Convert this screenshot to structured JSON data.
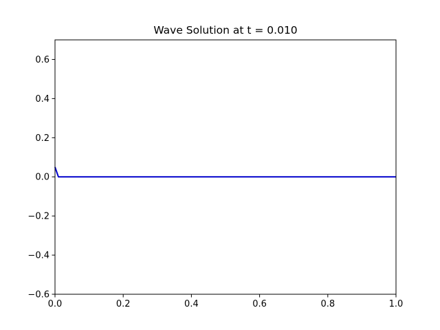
{
  "chart_data": {
    "type": "line",
    "title": "Wave Solution at t = 0.010",
    "xlabel": "",
    "ylabel": "",
    "xlim": [
      0.0,
      1.0
    ],
    "ylim": [
      -0.6,
      0.7
    ],
    "x_ticks": [
      0.0,
      0.2,
      0.4,
      0.6,
      0.8,
      1.0
    ],
    "x_tick_labels": [
      "0.0",
      "0.2",
      "0.4",
      "0.6",
      "0.8",
      "1.0"
    ],
    "y_ticks": [
      -0.6,
      -0.4,
      -0.2,
      0.0,
      0.2,
      0.4,
      0.6
    ],
    "y_tick_labels": [
      "−0.6",
      "−0.4",
      "−0.2",
      "0.0",
      "0.2",
      "0.4",
      "0.6"
    ],
    "grid": false,
    "legend": "none",
    "series": [
      {
        "color": "#0000cc",
        "x": [
          0.0,
          0.01,
          1.0
        ],
        "y": [
          0.05,
          0.0,
          0.0
        ]
      }
    ]
  }
}
